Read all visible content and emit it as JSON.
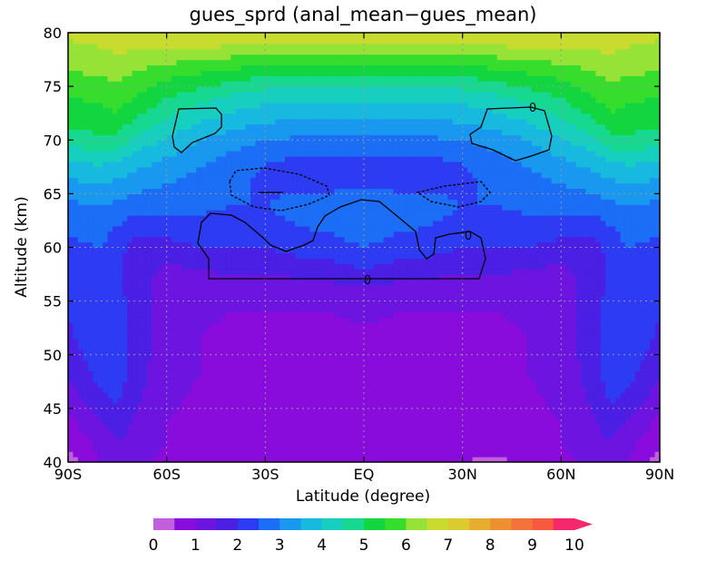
{
  "chart_data": {
    "type": "heatmap",
    "title": "gues_sprd (anal_mean−gues_mean)",
    "xlabel": "Latitude (degree)",
    "ylabel": "Altitude (km)",
    "xlim": [
      -90,
      90
    ],
    "ylim": [
      40,
      80
    ],
    "x_ticks": [
      {
        "value": -90,
        "label": "90S"
      },
      {
        "value": -60,
        "label": "60S"
      },
      {
        "value": -30,
        "label": "30S"
      },
      {
        "value": 0,
        "label": "EQ"
      },
      {
        "value": 30,
        "label": "30N"
      },
      {
        "value": 60,
        "label": "60N"
      },
      {
        "value": 90,
        "label": "90N"
      }
    ],
    "y_ticks": [
      {
        "value": 40,
        "label": "40"
      },
      {
        "value": 45,
        "label": "45"
      },
      {
        "value": 50,
        "label": "50"
      },
      {
        "value": 55,
        "label": "55"
      },
      {
        "value": 60,
        "label": "60"
      },
      {
        "value": 65,
        "label": "65"
      },
      {
        "value": 70,
        "label": "70"
      },
      {
        "value": 75,
        "label": "75"
      },
      {
        "value": 80,
        "label": "80"
      }
    ],
    "grid": true,
    "contour_levels": [
      0,
      0.5,
      1,
      1.5,
      2,
      2.5,
      3,
      3.5,
      4,
      4.5,
      5,
      5.5,
      6,
      6.5,
      7,
      7.5,
      8,
      8.5,
      9,
      9.5
    ],
    "contour_colors": [
      "#c25fdc",
      "#8a0cdd",
      "#6e14e0",
      "#4b1fe4",
      "#2d3cf2",
      "#1b6ef5",
      "#1898ef",
      "#17b9df",
      "#17cfbf",
      "#16d890",
      "#12d640",
      "#36dd2c",
      "#96e236",
      "#c8dc30",
      "#dccb2e",
      "#e6ad2e",
      "#ee9030",
      "#f3743a",
      "#f65840",
      "#f5286c"
    ],
    "colorbar_labels": [
      "0",
      "1",
      "2",
      "3",
      "4",
      "5",
      "6",
      "7",
      "8",
      "9",
      "10"
    ],
    "contour_line_label": "0",
    "grid_lat": [
      -90,
      -80,
      -75,
      -70,
      -60,
      -50,
      -40,
      -30,
      -20,
      -10,
      0,
      10,
      20,
      30,
      40,
      50,
      60,
      70,
      75,
      80,
      90
    ],
    "grid_alt": [
      40,
      42,
      44,
      46,
      48,
      50,
      52,
      54,
      56,
      58,
      60,
      62,
      64,
      66,
      68,
      70,
      72,
      74,
      76,
      78,
      80
    ],
    "values": [
      [
        0.3,
        1.0,
        1.2,
        1.1,
        0.9,
        0.7,
        0.6,
        0.6,
        0.7,
        0.8,
        0.9,
        0.8,
        0.7,
        0.5,
        0.4,
        0.6,
        0.9,
        1.1,
        1.2,
        1.0,
        0.3
      ],
      [
        0.6,
        1.2,
        1.5,
        1.3,
        1.0,
        0.8,
        0.7,
        0.7,
        0.8,
        0.8,
        0.8,
        0.8,
        0.7,
        0.7,
        0.8,
        0.8,
        1.0,
        1.3,
        1.5,
        1.2,
        0.6
      ],
      [
        0.9,
        1.5,
        1.8,
        1.5,
        1.0,
        0.9,
        0.8,
        0.8,
        0.8,
        0.8,
        0.8,
        0.8,
        0.8,
        0.8,
        0.8,
        0.9,
        1.0,
        1.5,
        1.8,
        1.5,
        0.9
      ],
      [
        1.2,
        1.9,
        2.1,
        1.6,
        1.1,
        0.9,
        0.8,
        0.8,
        0.8,
        0.8,
        0.8,
        0.8,
        0.8,
        0.8,
        0.8,
        0.9,
        1.1,
        1.6,
        2.1,
        1.9,
        1.2
      ],
      [
        1.5,
        2.2,
        2.3,
        1.7,
        1.2,
        1.0,
        0.9,
        0.8,
        0.8,
        0.8,
        0.8,
        0.8,
        0.8,
        0.8,
        0.9,
        1.0,
        1.2,
        1.7,
        2.3,
        2.2,
        1.5
      ],
      [
        1.7,
        2.4,
        2.4,
        1.8,
        1.2,
        1.0,
        0.9,
        0.8,
        0.8,
        0.8,
        0.8,
        0.8,
        0.8,
        0.8,
        0.9,
        1.0,
        1.2,
        1.8,
        2.4,
        2.4,
        1.7
      ],
      [
        1.9,
        2.5,
        2.4,
        1.8,
        1.2,
        1.0,
        0.9,
        0.9,
        0.9,
        0.9,
        0.9,
        0.9,
        0.9,
        0.9,
        0.9,
        1.0,
        1.2,
        1.8,
        2.4,
        2.5,
        1.9
      ],
      [
        2.0,
        2.5,
        2.3,
        1.8,
        1.3,
        1.1,
        1.0,
        1.0,
        1.0,
        1.0,
        1.1,
        1.0,
        1.0,
        1.0,
        1.0,
        1.1,
        1.3,
        1.8,
        2.3,
        2.5,
        2.0
      ],
      [
        2.1,
        2.4,
        2.2,
        1.7,
        1.3,
        1.2,
        1.2,
        1.2,
        1.2,
        1.3,
        1.4,
        1.3,
        1.2,
        1.2,
        1.2,
        1.2,
        1.3,
        1.7,
        2.2,
        2.4,
        2.1
      ],
      [
        2.2,
        2.4,
        2.1,
        1.7,
        1.4,
        1.5,
        1.6,
        1.6,
        1.7,
        1.8,
        2.0,
        1.8,
        1.7,
        1.6,
        1.6,
        1.5,
        1.4,
        1.7,
        2.1,
        2.4,
        2.2
      ],
      [
        2.4,
        2.5,
        2.2,
        1.8,
        1.8,
        2.0,
        2.0,
        2.0,
        2.2,
        2.3,
        2.5,
        2.3,
        2.2,
        2.0,
        2.0,
        2.0,
        1.8,
        1.8,
        2.2,
        2.5,
        2.4
      ],
      [
        2.6,
        2.7,
        2.5,
        2.2,
        2.3,
        2.4,
        2.3,
        2.3,
        2.5,
        2.6,
        2.8,
        2.6,
        2.5,
        2.3,
        2.3,
        2.4,
        2.3,
        2.2,
        2.5,
        2.7,
        2.6
      ],
      [
        2.9,
        3.0,
        2.9,
        2.8,
        2.7,
        2.6,
        2.5,
        2.5,
        2.7,
        2.8,
        2.9,
        2.8,
        2.7,
        2.5,
        2.5,
        2.6,
        2.7,
        2.8,
        2.9,
        3.0,
        2.9
      ],
      [
        3.4,
        3.5,
        3.4,
        3.2,
        3.0,
        2.8,
        2.6,
        2.4,
        2.3,
        2.3,
        2.4,
        2.3,
        2.3,
        2.4,
        2.6,
        2.8,
        3.0,
        3.2,
        3.4,
        3.5,
        3.4
      ],
      [
        4.0,
        4.1,
        4.0,
        3.7,
        3.4,
        3.1,
        2.8,
        2.5,
        2.4,
        2.4,
        2.4,
        2.4,
        2.4,
        2.5,
        2.8,
        3.1,
        3.4,
        3.7,
        4.0,
        4.1,
        4.0
      ],
      [
        4.7,
        4.9,
        4.8,
        4.4,
        3.9,
        3.5,
        3.2,
        3.0,
        2.9,
        2.9,
        2.9,
        2.9,
        2.9,
        3.0,
        3.2,
        3.5,
        3.9,
        4.4,
        4.8,
        4.9,
        4.7
      ],
      [
        5.2,
        5.3,
        5.4,
        5.0,
        4.5,
        4.1,
        3.8,
        3.6,
        3.5,
        3.5,
        3.5,
        3.5,
        3.5,
        3.6,
        3.8,
        4.1,
        4.5,
        5.0,
        5.4,
        5.3,
        5.2
      ],
      [
        5.5,
        5.6,
        5.8,
        5.5,
        5.0,
        4.7,
        4.4,
        4.2,
        4.1,
        4.1,
        4.1,
        4.1,
        4.1,
        4.2,
        4.4,
        4.7,
        5.0,
        5.5,
        5.8,
        5.6,
        5.5
      ],
      [
        5.9,
        6.0,
        6.1,
        5.9,
        5.6,
        5.4,
        5.2,
        5.0,
        4.9,
        4.9,
        4.9,
        4.9,
        4.9,
        5.0,
        5.2,
        5.4,
        5.6,
        5.9,
        6.1,
        6.0,
        5.9
      ],
      [
        6.3,
        6.4,
        6.5,
        6.4,
        6.3,
        6.2,
        6.1,
        6.0,
        6.0,
        6.0,
        6.0,
        6.0,
        6.0,
        6.0,
        6.1,
        6.2,
        6.3,
        6.4,
        6.5,
        6.4,
        6.3
      ],
      [
        6.6,
        6.7,
        6.8,
        6.9,
        7.0,
        7.1,
        7.1,
        7.1,
        7.1,
        7.1,
        7.1,
        7.1,
        7.1,
        7.1,
        7.1,
        7.1,
        7.0,
        6.9,
        6.8,
        6.7,
        6.6
      ]
    ]
  }
}
